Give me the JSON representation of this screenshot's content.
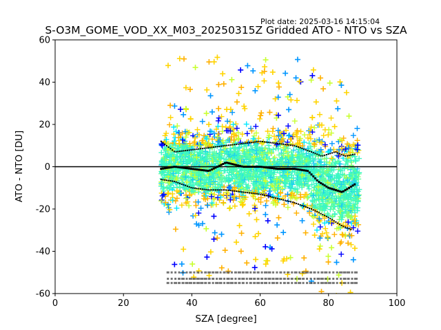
{
  "chart_data": {
    "type": "scatter",
    "title": "S-O3M_GOME_VOD_XX_M03_20250315Z Gridded ATO - NTO vs SZA",
    "plot_date": "Plot date: 2025-03-16 14:15:04",
    "xlabel": "SZA [degree]",
    "ylabel": "ATO - NTO [DU]",
    "xlim": [
      0,
      100
    ],
    "ylim": [
      -60,
      60
    ],
    "xticks": [
      0,
      20,
      40,
      60,
      80,
      100
    ],
    "yticks": [
      -60,
      -40,
      -20,
      0,
      20,
      40,
      60
    ],
    "reference_line_y": 0,
    "marker": "plus",
    "sza_range": [
      31,
      89
    ],
    "point_colors": [
      "#3af7c4",
      "#60ffa0",
      "#1dcff0",
      "#8cff6a",
      "#c8ff30",
      "#ffd400",
      "#ffb000",
      "#0096ff",
      "#0000ff",
      "#00e8ff"
    ],
    "upper_envelope": [
      {
        "x": 31,
        "y": 12
      },
      {
        "x": 35,
        "y": 7
      },
      {
        "x": 40,
        "y": 8
      },
      {
        "x": 45,
        "y": 9
      },
      {
        "x": 50,
        "y": 10
      },
      {
        "x": 55,
        "y": 11
      },
      {
        "x": 60,
        "y": 12
      },
      {
        "x": 65,
        "y": 11
      },
      {
        "x": 70,
        "y": 10
      },
      {
        "x": 75,
        "y": 7
      },
      {
        "x": 78,
        "y": 5
      },
      {
        "x": 82,
        "y": 7
      },
      {
        "x": 85,
        "y": 5
      },
      {
        "x": 88,
        "y": 6
      }
    ],
    "median": [
      {
        "x": 31,
        "y": -1
      },
      {
        "x": 35,
        "y": 0
      },
      {
        "x": 40,
        "y": -1
      },
      {
        "x": 45,
        "y": -2
      },
      {
        "x": 50,
        "y": 2
      },
      {
        "x": 55,
        "y": 0
      },
      {
        "x": 60,
        "y": 0
      },
      {
        "x": 65,
        "y": -1
      },
      {
        "x": 70,
        "y": -1
      },
      {
        "x": 74,
        "y": -2
      },
      {
        "x": 77,
        "y": -7
      },
      {
        "x": 80,
        "y": -10
      },
      {
        "x": 84,
        "y": -12
      },
      {
        "x": 88,
        "y": -8
      }
    ],
    "lower_envelope": [
      {
        "x": 31,
        "y": -6
      },
      {
        "x": 35,
        "y": -7
      },
      {
        "x": 40,
        "y": -10
      },
      {
        "x": 45,
        "y": -11
      },
      {
        "x": 50,
        "y": -11
      },
      {
        "x": 55,
        "y": -12
      },
      {
        "x": 60,
        "y": -13
      },
      {
        "x": 65,
        "y": -15
      },
      {
        "x": 70,
        "y": -17
      },
      {
        "x": 75,
        "y": -20
      },
      {
        "x": 80,
        "y": -24
      },
      {
        "x": 84,
        "y": -28
      },
      {
        "x": 87,
        "y": -30
      }
    ],
    "bin_count_rows_y": [
      -50,
      -53,
      -55
    ]
  }
}
